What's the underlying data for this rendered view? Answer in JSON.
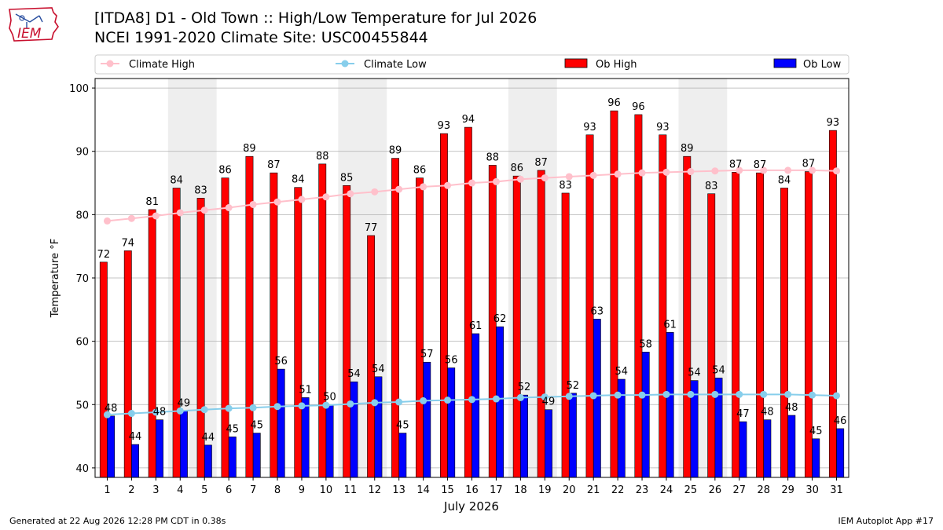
{
  "logo": {
    "text": "IEM"
  },
  "header": {
    "title": "[ITDA8] D1 - Old Town  :: High/Low Temperature for Jul 2026",
    "subtitle": "NCEI 1991-2020 Climate Site: USC00455844"
  },
  "footer": {
    "generated": "Generated at 22 Aug 2026 12:28 PM CDT in 0.38s",
    "app": "IEM Autoplot App #17"
  },
  "colors": {
    "ob_high": "#ff0000",
    "ob_low": "#0000ff",
    "climate_high": "#ffc0cb",
    "climate_low": "#87ceeb",
    "weekend_shade": "#eeeeee"
  },
  "chart_data": {
    "type": "bar",
    "xlabel": "July 2026",
    "ylabel": "Temperature °F",
    "ylim": [
      38.5,
      101.5
    ],
    "yticks": [
      40,
      50,
      60,
      70,
      80,
      90,
      100
    ],
    "grid": true,
    "legend_position": "top",
    "categories": [
      1,
      2,
      3,
      4,
      5,
      6,
      7,
      8,
      9,
      10,
      11,
      12,
      13,
      14,
      15,
      16,
      17,
      18,
      19,
      20,
      21,
      22,
      23,
      24,
      25,
      26,
      27,
      28,
      29,
      30,
      31
    ],
    "shaded_day_ranges": [
      [
        4,
        5
      ],
      [
        11,
        12
      ],
      [
        18,
        19
      ],
      [
        25,
        26
      ]
    ],
    "series": [
      {
        "name": "Ob High",
        "kind": "bar",
        "values": [
          72.5,
          74.3,
          80.8,
          84.2,
          82.6,
          85.8,
          89.2,
          86.6,
          84.3,
          88.0,
          84.6,
          76.7,
          88.9,
          85.8,
          92.8,
          93.8,
          87.8,
          86.1,
          87.0,
          83.4,
          92.6,
          96.4,
          95.8,
          92.6,
          89.2,
          83.3,
          86.7,
          86.6,
          84.2,
          86.8,
          93.3
        ],
        "labels": [
          "72",
          "74",
          "81",
          "84",
          "83",
          "86",
          "89",
          "87",
          "84",
          "88",
          "85",
          "77",
          "89",
          "86",
          "93",
          "94",
          "88",
          "86",
          "87",
          "83",
          "93",
          "96",
          "96",
          "93",
          "89",
          "83",
          "87",
          "87",
          "84",
          "87",
          "93"
        ]
      },
      {
        "name": "Ob Low",
        "kind": "bar",
        "values": [
          48.2,
          43.7,
          47.6,
          49.0,
          43.6,
          44.9,
          45.5,
          55.6,
          51.1,
          50.0,
          53.6,
          54.4,
          45.5,
          56.7,
          55.8,
          61.2,
          62.3,
          51.5,
          49.2,
          51.8,
          63.5,
          54.0,
          58.3,
          61.4,
          53.8,
          54.2,
          47.3,
          47.6,
          48.3,
          44.6,
          46.2
        ],
        "labels": [
          "48",
          "44",
          "48",
          "49",
          "44",
          "45",
          "45",
          "56",
          "51",
          "50",
          "54",
          "54",
          "45",
          "57",
          "56",
          "61",
          "62",
          "52",
          "49",
          "52",
          "63",
          "54",
          "58",
          "61",
          "54",
          "54",
          "47",
          "48",
          "48",
          "45",
          "46"
        ]
      },
      {
        "name": "Climate High",
        "kind": "line",
        "values": [
          79.0,
          79.4,
          79.8,
          80.3,
          80.7,
          81.1,
          81.6,
          82.0,
          82.4,
          82.8,
          83.3,
          83.6,
          84.0,
          84.4,
          84.6,
          85.0,
          85.2,
          85.6,
          85.8,
          86.0,
          86.2,
          86.4,
          86.6,
          86.7,
          86.8,
          86.9,
          87.0,
          87.0,
          87.0,
          87.0,
          86.9
        ]
      },
      {
        "name": "Climate Low",
        "kind": "line",
        "values": [
          48.4,
          48.6,
          48.8,
          49.0,
          49.2,
          49.4,
          49.5,
          49.7,
          49.8,
          49.9,
          50.1,
          50.3,
          50.4,
          50.6,
          50.7,
          50.8,
          50.9,
          51.1,
          51.2,
          51.3,
          51.4,
          51.5,
          51.5,
          51.6,
          51.6,
          51.6,
          51.6,
          51.6,
          51.6,
          51.5,
          51.4
        ]
      }
    ]
  }
}
